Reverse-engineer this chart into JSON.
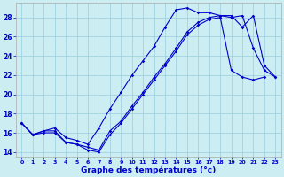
{
  "xlabel": "Graphe des températures (°c)",
  "bg_color": "#cceef2",
  "line_color": "#0000cc",
  "grid_color": "#99ccdd",
  "xlim": [
    -0.5,
    23.5
  ],
  "ylim": [
    13.5,
    29.5
  ],
  "xticks": [
    0,
    1,
    2,
    3,
    4,
    5,
    6,
    7,
    8,
    9,
    10,
    11,
    12,
    13,
    14,
    15,
    16,
    17,
    18,
    19,
    20,
    21,
    22,
    23
  ],
  "yticks": [
    14,
    16,
    18,
    20,
    22,
    24,
    26,
    28
  ],
  "series1_x": [
    0,
    1,
    2,
    3,
    4,
    5,
    6,
    7,
    8,
    9,
    10,
    11,
    12,
    13,
    14,
    15,
    16,
    17,
    18,
    19,
    20,
    21,
    22,
    23
  ],
  "series1_y": [
    17.0,
    15.8,
    16.2,
    16.5,
    15.5,
    15.2,
    14.8,
    16.5,
    18.5,
    20.2,
    22.0,
    23.5,
    25.0,
    27.0,
    28.8,
    29.0,
    28.5,
    28.5,
    28.2,
    28.2,
    27.0,
    28.2,
    23.0,
    21.8
  ],
  "series2_x": [
    0,
    1,
    2,
    3,
    4,
    5,
    6,
    7,
    8,
    9,
    10,
    11,
    12,
    13,
    14,
    15,
    16,
    17,
    18,
    19,
    20,
    21,
    22,
    23
  ],
  "series2_y": [
    17.0,
    15.8,
    16.2,
    16.2,
    15.0,
    14.8,
    14.5,
    14.2,
    16.2,
    17.2,
    18.8,
    20.2,
    21.8,
    23.2,
    24.8,
    26.5,
    27.5,
    28.0,
    28.2,
    28.0,
    28.2,
    24.8,
    22.5,
    21.8
  ],
  "series3_x": [
    0,
    1,
    2,
    3,
    4,
    5,
    6,
    7,
    8,
    9,
    10,
    11,
    12,
    13,
    14,
    15,
    16,
    17,
    18,
    19,
    20,
    21,
    22,
    23
  ],
  "series3_y": [
    17.0,
    15.8,
    16.0,
    16.0,
    15.0,
    14.8,
    14.2,
    14.0,
    15.8,
    17.0,
    18.5,
    20.0,
    21.5,
    23.0,
    24.5,
    26.2,
    27.2,
    27.8,
    28.0,
    22.5,
    21.8,
    21.5,
    21.8,
    null
  ]
}
